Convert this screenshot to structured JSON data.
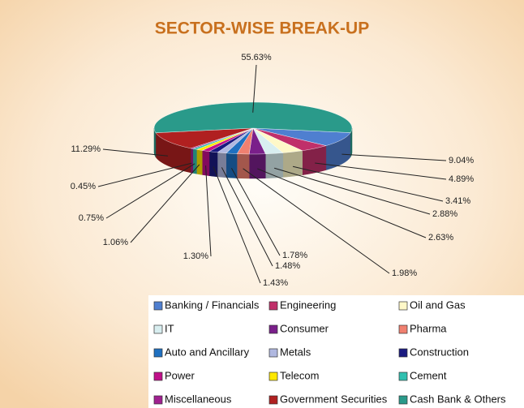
{
  "chart_data": {
    "type": "pie",
    "title": "SECTOR-WISE BREAK-UP",
    "categories": [
      "Banking / Financials",
      "Engineering",
      "Oil and Gas",
      "IT",
      "Consumer",
      "Pharma",
      "Auto and Ancillary",
      "Metals",
      "Construction",
      "Power",
      "Telecom",
      "Cement",
      "Miscellaneous",
      "Government Securities",
      "Cash Bank & Others"
    ],
    "values": [
      9.04,
      4.89,
      3.41,
      2.88,
      2.63,
      1.98,
      1.78,
      1.48,
      1.43,
      1.3,
      1.06,
      0.75,
      0.45,
      11.29,
      55.63
    ],
    "value_labels": [
      "9.04%",
      "4.89%",
      "3.41%",
      "2.88%",
      "2.63%",
      "1.98%",
      "1.78%",
      "1.48%",
      "1.43%",
      "1.30%",
      "1.06%",
      "0.75%",
      "0.45%",
      "11.29%",
      "55.63%"
    ],
    "colors": [
      "#4f7fd0",
      "#c0306a",
      "#fff8c8",
      "#d8eef0",
      "#7a1f8a",
      "#f08070",
      "#1f70c0",
      "#b0b8e0",
      "#1a1a80",
      "#c0108a",
      "#ffe800",
      "#30c0b0",
      "#a02090",
      "#b02020",
      "#2a9a8a"
    ]
  }
}
